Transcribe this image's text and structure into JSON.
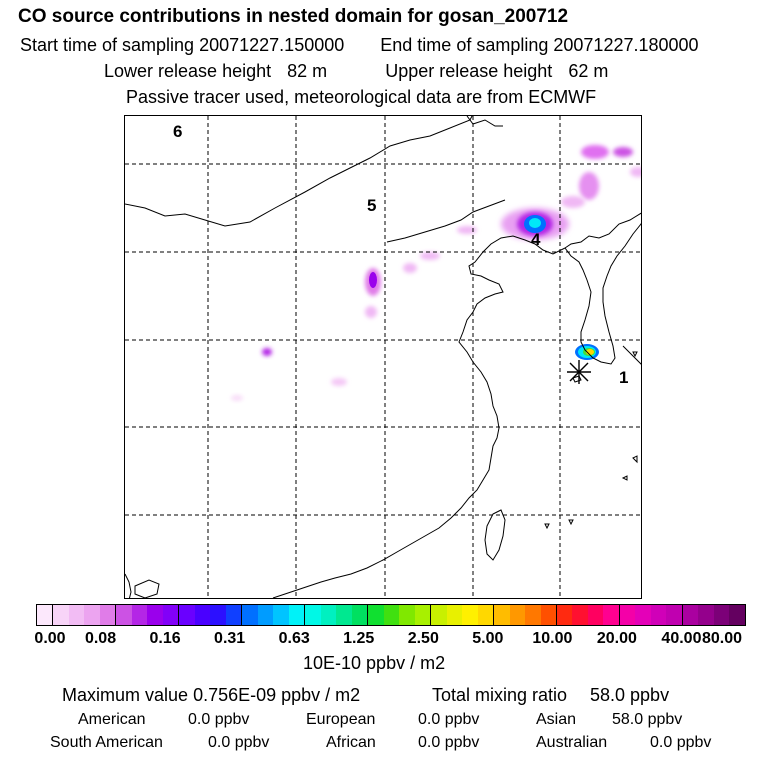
{
  "header": {
    "title": "CO  source contributions in nested domain for gosan_200712",
    "start_label": "Start time of sampling",
    "start_value": "20071227.150000",
    "end_label": "End time of sampling",
    "end_value": "20071227.180000",
    "lower_label": "Lower release height",
    "lower_value": "82 m",
    "upper_label": "Upper release height",
    "upper_value": "62 m",
    "tracer_note": "Passive tracer used, meteorological data are from ECMWF"
  },
  "map": {
    "markers": [
      "6",
      "5",
      "4",
      "1"
    ],
    "colors": {
      "magenta_light": "#f4c8f6",
      "magenta": "#e070f0",
      "purple": "#b000f0",
      "cyan": "#00e8f8",
      "blue": "#0060ff",
      "yellow": "#ffd800",
      "green": "#40e040"
    }
  },
  "colorbar": {
    "colors": [
      "#fce8fc",
      "#f8d4f8",
      "#f2bcf4",
      "#eca4f0",
      "#e07ce8",
      "#cc52e4",
      "#b426e6",
      "#9a00ec",
      "#8200f8",
      "#6a00ff",
      "#4a00ff",
      "#2c10ff",
      "#1040ff",
      "#0070ff",
      "#009cff",
      "#00c4ff",
      "#00f2f8",
      "#00f8e6",
      "#00f0c0",
      "#00e890",
      "#00e060",
      "#10e030",
      "#40e010",
      "#80e800",
      "#a8f000",
      "#c8f000",
      "#e8f000",
      "#fff000",
      "#ffd800",
      "#ffbc00",
      "#ff9800",
      "#ff7800",
      "#ff5000",
      "#ff2a10",
      "#ff1030",
      "#ff0060",
      "#ff0090",
      "#f400a8",
      "#e400b8",
      "#d000b8",
      "#c000b0",
      "#aa00a0",
      "#94008c",
      "#7c0078",
      "#640060"
    ],
    "major_after": [
      0,
      4,
      8,
      12,
      16,
      20,
      24,
      28,
      32,
      36,
      40
    ],
    "ticks": [
      "0.00",
      "0.08",
      "0.16",
      "0.31",
      "0.63",
      "1.25",
      "2.50",
      "5.00",
      "10.00",
      "20.00",
      "40.00",
      "80.00"
    ],
    "unit": "10E-10 ppbv / m2"
  },
  "summary": {
    "max_label": "Maximum value",
    "max_value": "0.756E-09 ppbv / m2",
    "total_label": "Total mixing ratio",
    "total_value": "58.0 ppbv",
    "regions": [
      {
        "name": "American",
        "value": "0.0 ppbv"
      },
      {
        "name": "European",
        "value": "0.0 ppbv"
      },
      {
        "name": "Asian",
        "value": "58.0 ppbv"
      },
      {
        "name": "South American",
        "value": "0.0 ppbv"
      },
      {
        "name": "African",
        "value": "0.0 ppbv"
      },
      {
        "name": "Australian",
        "value": "0.0 ppbv"
      }
    ]
  }
}
